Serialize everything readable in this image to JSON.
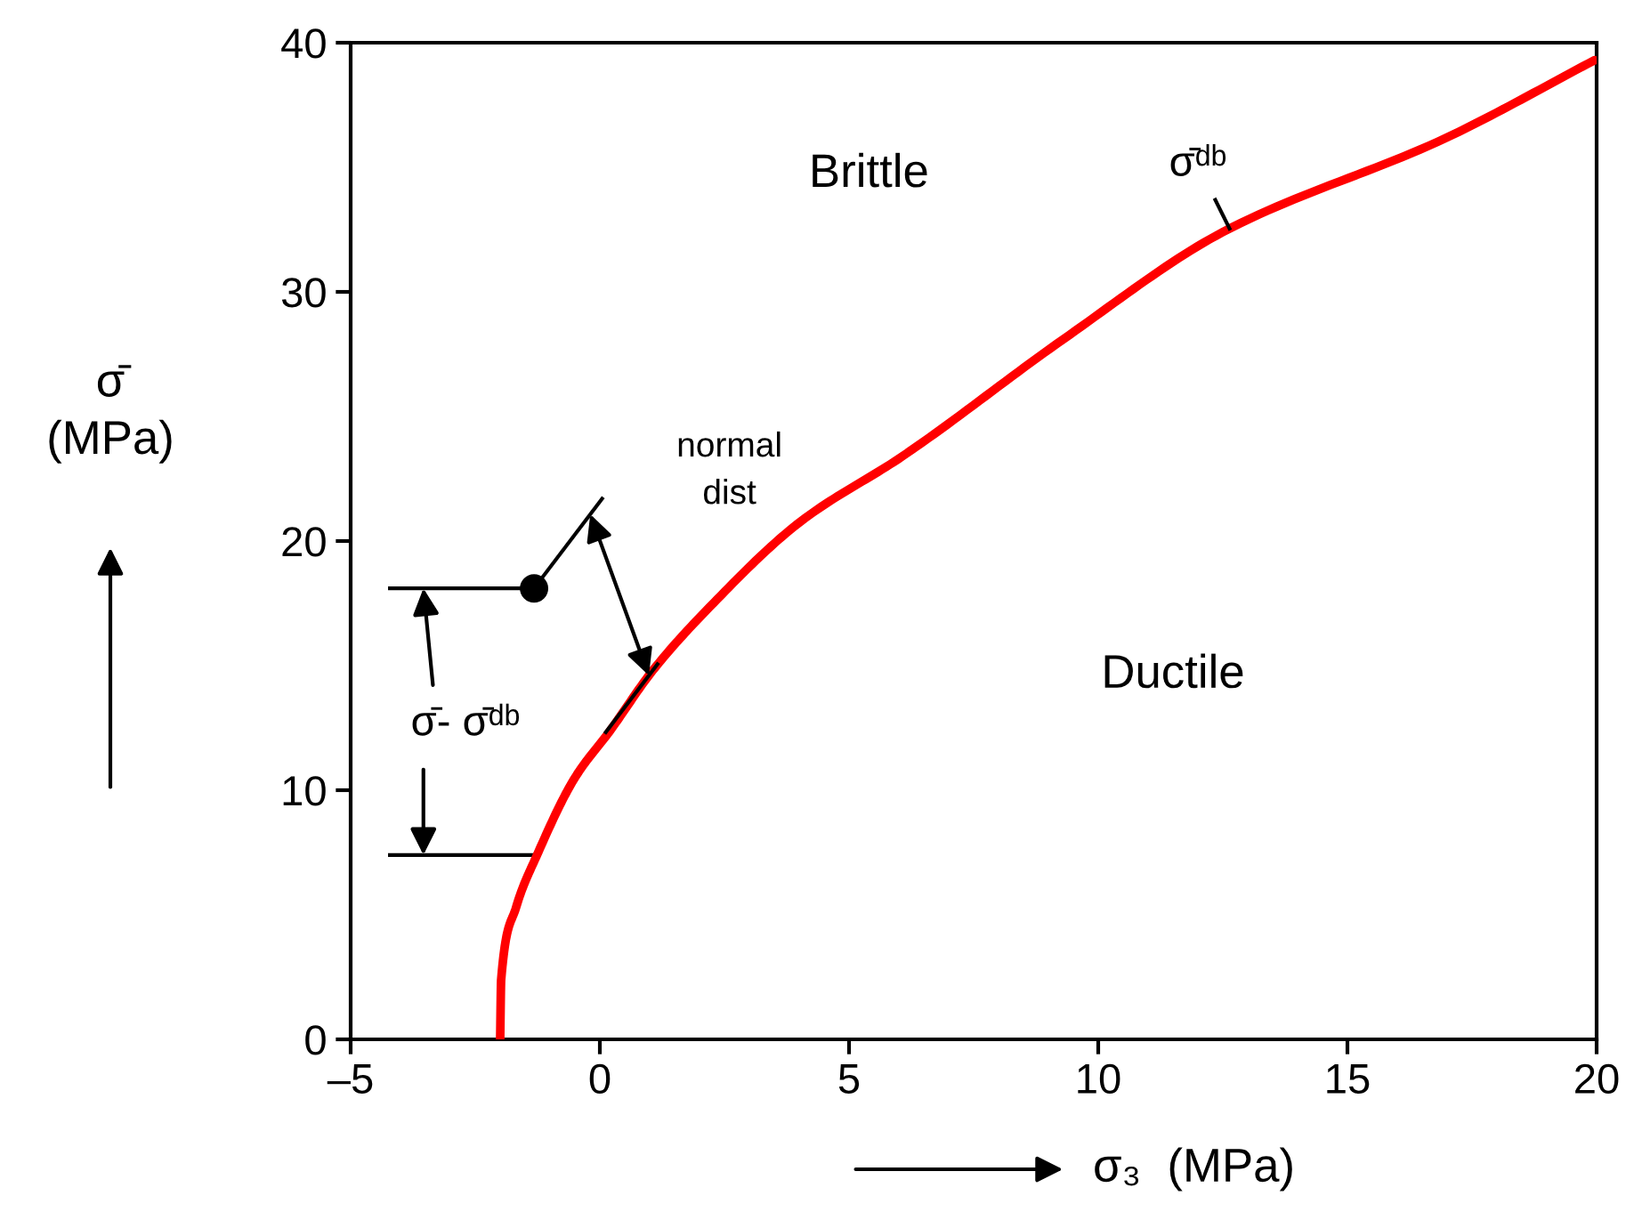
{
  "chart_data": {
    "type": "line",
    "xlabel": "σ₃  (MPa)",
    "ylabel": "σ̄\n(MPa)",
    "xlim": [
      -5,
      20
    ],
    "xticks": [
      {
        "value": -5,
        "label": "–5"
      },
      0,
      5,
      10,
      15,
      20
    ],
    "ylim": [
      0,
      40
    ],
    "yticks": [
      0,
      10,
      20,
      30,
      40
    ],
    "grid": false,
    "series": [
      {
        "color": "#ff0000",
        "x": [
          -2.0,
          -1.98,
          -1.68,
          -1.26,
          -0.5,
          0.21,
          1.06,
          2.13,
          4.04,
          6.07,
          9.3,
          12.5,
          17.0,
          19.96
        ],
        "values": [
          0,
          2.4,
          5.3,
          7.4,
          10.5,
          12.4,
          14.8,
          17.2,
          20.8,
          23.4,
          28.1,
          32.4,
          36.2,
          39.3
        ]
      },
      {
        "type": "line",
        "color": "#000000",
        "x": [
          -4.25,
          -1.32
        ],
        "values": [
          18.1,
          18.1
        ]
      },
      {
        "type": "line",
        "color": "#000000",
        "x": [
          -4.25,
          -1.26
        ],
        "values": [
          7.4,
          7.4
        ]
      },
      {
        "type": "scatter",
        "color": "#000000",
        "x": [
          -1.32
        ],
        "values": [
          18.1
        ]
      }
    ],
    "annotations": [
      "Brittle",
      "Ductile",
      "σ̄ᵈᵇ",
      "normal\ndist",
      {
        "text": "σ̄- σ̄ᵈᵇ",
        "x": -3.54,
        "y": 18.1
      }
    ]
  }
}
